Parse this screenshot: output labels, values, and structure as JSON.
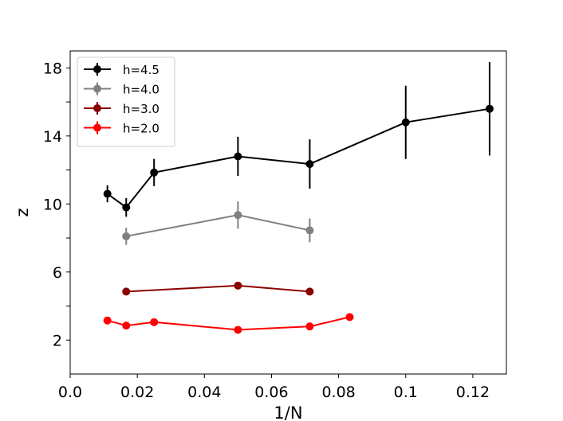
{
  "chart_data": {
    "type": "line",
    "title": "",
    "xlabel": "1/N",
    "ylabel": "z",
    "xlim": [
      0.0,
      0.13
    ],
    "ylim": [
      0,
      19
    ],
    "grid": false,
    "legend_position": "top-left",
    "x_ticks": [
      0.0,
      0.02,
      0.04,
      0.06,
      0.08,
      0.1,
      0.12
    ],
    "x_tick_labels": [
      "0.0",
      "0.02",
      "0.04",
      "0.06",
      "0.08",
      "0.1",
      "0.12"
    ],
    "y_ticks_labeled": [
      2,
      6,
      10,
      14,
      18
    ],
    "y_tick_labels": [
      "2",
      "6",
      "10",
      "14",
      "18"
    ],
    "y_ticks_minor": [
      4,
      8,
      12,
      16
    ],
    "series": [
      {
        "name": "h=4.5",
        "color": "#000000",
        "x": [
          0.0111,
          0.0167,
          0.025,
          0.05,
          0.0714,
          0.1,
          0.125
        ],
        "y": [
          10.6,
          9.8,
          11.85,
          12.8,
          12.35,
          14.8,
          15.6
        ],
        "err": [
          0.5,
          0.55,
          0.8,
          1.15,
          1.45,
          2.15,
          2.75
        ]
      },
      {
        "name": "h=4.0",
        "color": "#808080",
        "x": [
          0.0167,
          0.05,
          0.0714
        ],
        "y": [
          8.1,
          9.35,
          8.45
        ],
        "err": [
          0.5,
          0.8,
          0.7
        ]
      },
      {
        "name": "h=3.0",
        "color": "#8b0000",
        "x": [
          0.0167,
          0.05,
          0.0714
        ],
        "y": [
          4.85,
          5.2,
          4.85
        ],
        "err": [
          0.05,
          0.05,
          0.05
        ]
      },
      {
        "name": "h=2.0",
        "color": "#ff0000",
        "x": [
          0.0111,
          0.0167,
          0.025,
          0.05,
          0.0714,
          0.0833
        ],
        "y": [
          3.15,
          2.85,
          3.05,
          2.6,
          2.8,
          3.35
        ],
        "err": [
          0.05,
          0.05,
          0.05,
          0.05,
          0.05,
          0.05
        ]
      }
    ]
  }
}
